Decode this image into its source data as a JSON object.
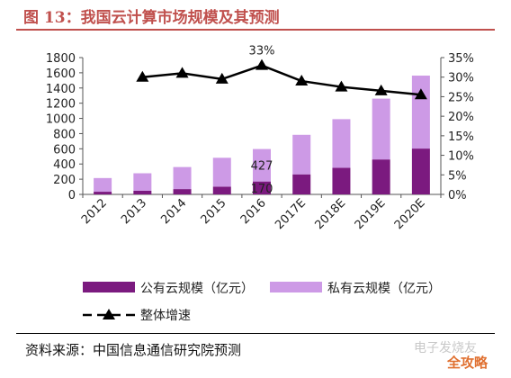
{
  "header": {
    "title": "图 13：我国云计算市场规模及其预测"
  },
  "footer": {
    "source": "资料来源：中国信息通信研究院预测",
    "watermark": "电子发烧友",
    "watermark_site": "全攻略"
  },
  "colors": {
    "public": "#7b1a7f",
    "private": "#cd9ae6",
    "line": "#000000",
    "title": "#c0504d"
  },
  "chart_data": {
    "type": "bar",
    "stacked": true,
    "categories": [
      "2012",
      "2013",
      "2014",
      "2015",
      "2016",
      "2017E",
      "2018E",
      "2019E",
      "2020E"
    ],
    "series": [
      {
        "name": "公有云规模（亿元）",
        "values": [
          35,
          48,
          70,
          102,
          170,
          264,
          350,
          460,
          603
        ]
      },
      {
        "name": "私有云规模（亿元）",
        "values": [
          180,
          230,
          290,
          380,
          427,
          520,
          640,
          800,
          960
        ]
      }
    ],
    "line_series": {
      "name": "整体增速",
      "categories": [
        "2013",
        "2014",
        "2015",
        "2016",
        "2017E",
        "2018E",
        "2019E",
        "2020E"
      ],
      "values": [
        30,
        31,
        29.5,
        33,
        29,
        27.5,
        26.5,
        25.5
      ],
      "axis": "right"
    },
    "data_labels": [
      {
        "category": "2016",
        "series": "私有云规模（亿元）",
        "text": "427"
      },
      {
        "category": "2016",
        "series": "公有云规模（亿元）",
        "text": "170"
      },
      {
        "category": "2016",
        "series": "整体增速",
        "text": "33%"
      }
    ],
    "y_left": {
      "min": 0,
      "max": 1800,
      "ticks": [
        "0",
        "200",
        "400",
        "600",
        "800",
        "1000",
        "1200",
        "1400",
        "1600",
        "1800"
      ]
    },
    "y_right": {
      "min": 0,
      "max": 35,
      "ticks": [
        "0%",
        "5%",
        "10%",
        "15%",
        "20%",
        "25%",
        "30%",
        "35%"
      ]
    },
    "grid": false,
    "legend": {
      "position": "bottom",
      "items": [
        "公有云规模（亿元）",
        "私有云规模（亿元）",
        "整体增速"
      ]
    }
  }
}
